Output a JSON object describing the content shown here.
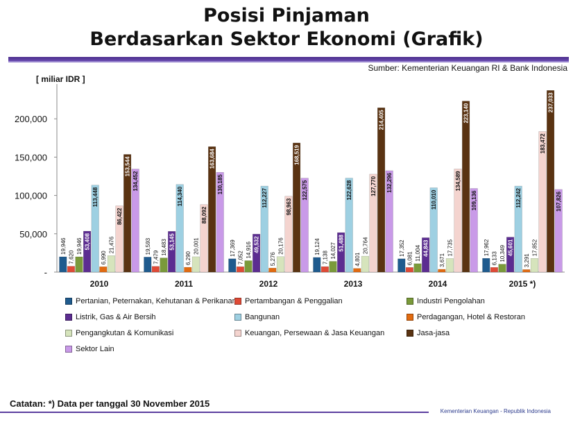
{
  "header": {
    "title_line1": "Posisi Pinjaman",
    "title_line2": "Berdasarkan Sektor Ekonomi (Grafik)",
    "source": "Sumber: Kementerian Keuangan RI & Bank Indonesia",
    "unit": "[ miliar IDR ]"
  },
  "footer": {
    "note": "Catatan:  *) Data per tanggal 30 November 2015",
    "org": "Kementerian Keuangan - Republik Indonesia"
  },
  "chart_data": {
    "type": "bar",
    "title": "Posisi Pinjaman Berdasarkan Sektor Ekonomi (Grafik)",
    "ylabel": "[ miliar IDR ]",
    "ylim": [
      0,
      240000
    ],
    "yticks": [
      0,
      50000,
      100000,
      150000,
      200000
    ],
    "ytick_labels": [
      "-",
      "50,000",
      "100,000",
      "150,000",
      "200,000"
    ],
    "grid": false,
    "legend_position": "bottom",
    "categories": [
      "2010",
      "2011",
      "2012",
      "2013",
      "2014",
      "2015 *)"
    ],
    "series": [
      {
        "name": "Pertanian, Peternakan, Kehutanan & Perikanan",
        "color": "#1f5b8e",
        "values": [
          19946,
          19593,
          17369,
          19124,
          17352,
          17962
        ],
        "labels": [
          "19,946",
          "19,593",
          "17,369",
          "19,124",
          "17,352",
          "17,962"
        ]
      },
      {
        "name": "Pertambangan & Penggalian",
        "color": "#e04a36",
        "values": [
          7620,
          7479,
          7052,
          7138,
          6081,
          6133
        ],
        "labels": [
          "7,620",
          "7,479",
          "7,052",
          "7,138",
          "6,081",
          "6,133"
        ]
      },
      {
        "name": "Industri Pengolahan",
        "color": "#7a9a3a",
        "values": [
          19946,
          18483,
          14916,
          14027,
          11004,
          10349
        ],
        "labels": [
          "19,946",
          "18,483",
          "14,916",
          "14,027",
          "11,004",
          "10,349"
        ]
      },
      {
        "name": "Listrik, Gas & Air Bersih",
        "color": "#5c2d91",
        "values": [
          53408,
          53145,
          49532,
          51488,
          44843,
          45601
        ],
        "labels": [
          "53,408",
          "53,145",
          "49,532",
          "51,488",
          "44,843",
          "45,601"
        ]
      },
      {
        "name": "Bangunan",
        "color": "#9ed0e2",
        "values": [
          113448,
          114340,
          112227,
          122628,
          110010,
          112242
        ],
        "labels": [
          "113,448",
          "114,340",
          "112,227",
          "122,628",
          "110,010",
          "112,242"
        ]
      },
      {
        "name": "Perdagangan, Hotel & Restoran",
        "color": "#e26b10",
        "values": [
          6990,
          6290,
          5276,
          4801,
          3671,
          3291
        ],
        "labels": [
          "6,990",
          "6,290",
          "5,276",
          "4,801",
          "3,671",
          "3,291"
        ]
      },
      {
        "name": "Pengangkutan & Komunikasi",
        "color": "#d6e4bc",
        "values": [
          21476,
          20001,
          20176,
          20764,
          17735,
          17852
        ],
        "labels": [
          "21,476",
          "20,001",
          "20,176",
          "20,764",
          "17,735",
          "17,852"
        ]
      },
      {
        "name": "Keuangan, Persewaan & Jasa Keuangan",
        "color": "#f4d4cf",
        "values": [
          86422,
          88092,
          98963,
          127770,
          134589,
          183472
        ],
        "labels": [
          "86,422",
          "88,092",
          "98,963",
          "127,770",
          "134,589",
          "183,472"
        ]
      },
      {
        "name": "Jasa-jasa",
        "color": "#5a3312",
        "values": [
          153544,
          163684,
          168519,
          214405,
          223140,
          237033
        ],
        "labels": [
          "153,544",
          "163,684",
          "168,519",
          "214,405",
          "223,140",
          "237,033"
        ]
      },
      {
        "name": "Sektor Lain",
        "color": "#c99ae8",
        "values": [
          134452,
          130185,
          122575,
          132296,
          109136,
          107826
        ],
        "labels": [
          "134,452",
          "130,185",
          "122,575",
          "132,296",
          "109,136",
          "107,826"
        ]
      }
    ]
  }
}
